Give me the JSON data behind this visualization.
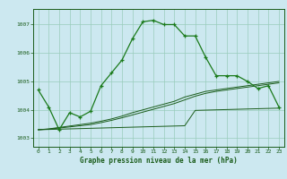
{
  "title": "Graphe pression niveau de la mer (hPa)",
  "background_color": "#cce8f0",
  "grid_color": "#99ccbb",
  "line_color_main": "#1a7a1a",
  "line_color_dark": "#1a5c1a",
  "xlim": [
    -0.5,
    23.5
  ],
  "ylim": [
    1002.7,
    1007.55
  ],
  "yticks": [
    1003,
    1004,
    1005,
    1006,
    1007
  ],
  "xticks": [
    0,
    1,
    2,
    3,
    4,
    5,
    6,
    7,
    8,
    9,
    10,
    11,
    12,
    13,
    14,
    15,
    16,
    17,
    18,
    19,
    20,
    21,
    22,
    23
  ],
  "series1": [
    1004.7,
    1004.1,
    1003.3,
    1003.9,
    1003.75,
    1003.95,
    1004.85,
    1005.3,
    1005.75,
    1006.5,
    1007.1,
    1007.15,
    1007.0,
    1007.0,
    1006.6,
    1006.6,
    1005.85,
    1005.2,
    1005.2,
    1005.2,
    1005.0,
    1004.75,
    1004.85,
    1004.1
  ],
  "series2": [
    1003.3,
    1003.31,
    1003.32,
    1003.33,
    1003.34,
    1003.35,
    1003.36,
    1003.37,
    1003.38,
    1003.39,
    1003.4,
    1003.41,
    1003.42,
    1003.43,
    1003.44,
    1003.98,
    1003.99,
    1004.0,
    1004.01,
    1004.02,
    1004.03,
    1004.04,
    1004.05,
    1004.06
  ],
  "series3": [
    1003.3,
    1003.32,
    1003.36,
    1003.4,
    1003.44,
    1003.48,
    1003.55,
    1003.63,
    1003.72,
    1003.82,
    1003.92,
    1004.02,
    1004.12,
    1004.22,
    1004.35,
    1004.48,
    1004.58,
    1004.65,
    1004.7,
    1004.75,
    1004.8,
    1004.85,
    1004.9,
    1004.95
  ],
  "series4": [
    1003.3,
    1003.33,
    1003.38,
    1003.43,
    1003.48,
    1003.53,
    1003.6,
    1003.68,
    1003.78,
    1003.9,
    1004.0,
    1004.1,
    1004.2,
    1004.3,
    1004.45,
    1004.55,
    1004.65,
    1004.7,
    1004.75,
    1004.8,
    1004.85,
    1004.9,
    1004.95,
    1005.0
  ]
}
